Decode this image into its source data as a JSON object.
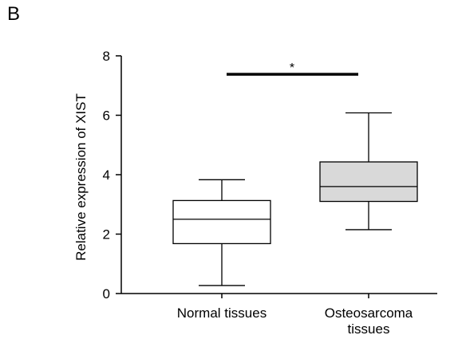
{
  "panel_label": "B",
  "chart_data": {
    "type": "box",
    "ylabel": "Relative expression of XIST",
    "xlabel": "",
    "ylim": [
      0,
      8
    ],
    "yticks": [
      0,
      2,
      4,
      6,
      8
    ],
    "grid": false,
    "legend": "none",
    "categories": [
      {
        "label_lines": [
          "Normal tissues"
        ],
        "fill": "#ffffff"
      },
      {
        "label_lines": [
          "Osteosarcoma",
          "tissues"
        ],
        "fill": "#d9d9d9"
      }
    ],
    "boxes": [
      {
        "min": 0.27,
        "q1": 1.68,
        "median": 2.5,
        "q3": 3.13,
        "max": 3.83
      },
      {
        "min": 2.15,
        "q1": 3.1,
        "median": 3.6,
        "q3": 4.43,
        "max": 6.08
      }
    ],
    "significance": {
      "label": "*",
      "y": 7.38
    }
  }
}
